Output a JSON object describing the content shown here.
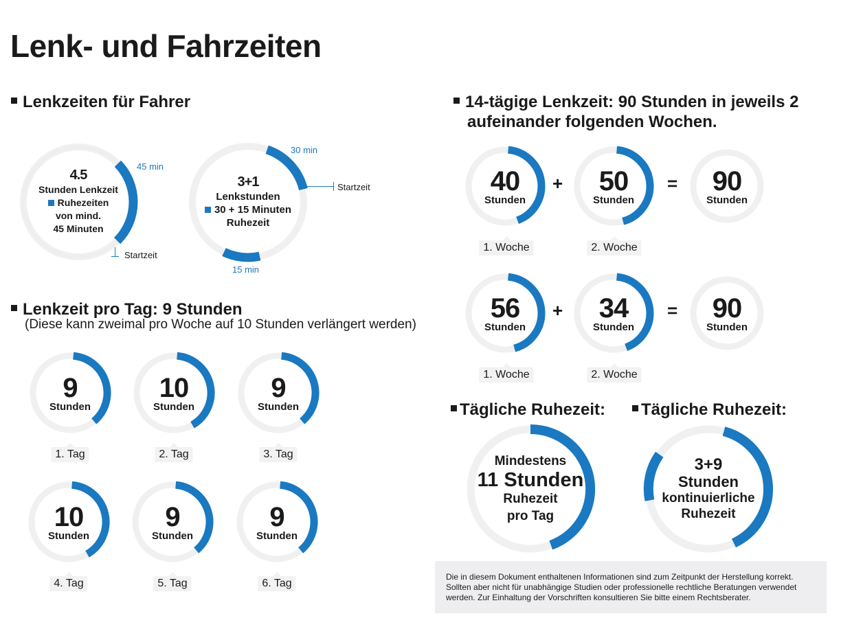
{
  "title": "Lenk- und Fahrzeiten",
  "colors": {
    "accent": "#1a79c0",
    "ring": "#f0f0f0",
    "text": "#1a1a1a"
  },
  "section1": {
    "heading": "Lenkzeiten für Fahrer",
    "ring1": {
      "num": "4.5",
      "line1": "Stunden Lenkzeit",
      "line2": "Ruhezeiten",
      "line3": "von mind.",
      "line4": "45 Minuten",
      "tag45": "45 min",
      "start": "Startzeit"
    },
    "ring2": {
      "num": "3+1",
      "line1": "Lenkstunden",
      "line2": "30 + 15 Minuten",
      "line3": "Ruhezeit",
      "tag30": "30 min",
      "tag15": "15 min",
      "start": "Startzeit"
    }
  },
  "section2": {
    "heading": "Lenkzeit pro Tag: 9 Stunden",
    "note": "(Diese kann zweimal pro Woche auf 10 Stunden verlängert werden)",
    "unit": "Stunden",
    "days": [
      {
        "value": "9",
        "label": "1. Tag"
      },
      {
        "value": "10",
        "label": "2. Tag"
      },
      {
        "value": "9",
        "label": "3. Tag"
      },
      {
        "value": "10",
        "label": "4. Tag"
      },
      {
        "value": "9",
        "label": "5. Tag"
      },
      {
        "value": "9",
        "label": "6. Tag"
      }
    ]
  },
  "section3": {
    "heading_line1": "14-tägige Lenkzeit: 90 Stunden in jeweils 2",
    "heading_line2": "aufeinander folgenden Wochen.",
    "unit": "Stunden",
    "plus": "+",
    "equals": "=",
    "row1": {
      "a": "40",
      "b": "50",
      "sum": "90",
      "label_a": "1. Woche",
      "label_b": "2. Woche"
    },
    "row2": {
      "a": "56",
      "b": "34",
      "sum": "90",
      "label_a": "1. Woche",
      "label_b": "2. Woche"
    }
  },
  "section4": {
    "left": {
      "heading": "Tägliche Ruhezeit:",
      "line1": "Mindestens",
      "line2": "11 Stunden",
      "line3": "Ruhezeit",
      "line4": "pro Tag"
    },
    "right": {
      "heading": "Tägliche Ruhezeit:",
      "line1": "3+9",
      "line2": "Stunden",
      "line3": "kontinuierliche",
      "line4": "Ruhezeit"
    }
  },
  "disclaimer": "Die in diesem Dokument enthaltenen Informationen sind zum Zeitpunkt der Herstellung korrekt. Sollten aber nicht für unabhängige Studien oder professionelle rechtliche Beratungen verwendet werden. Zur Einhaltung der Vorschriften konsultieren Sie bitte einem Rechtsberater."
}
